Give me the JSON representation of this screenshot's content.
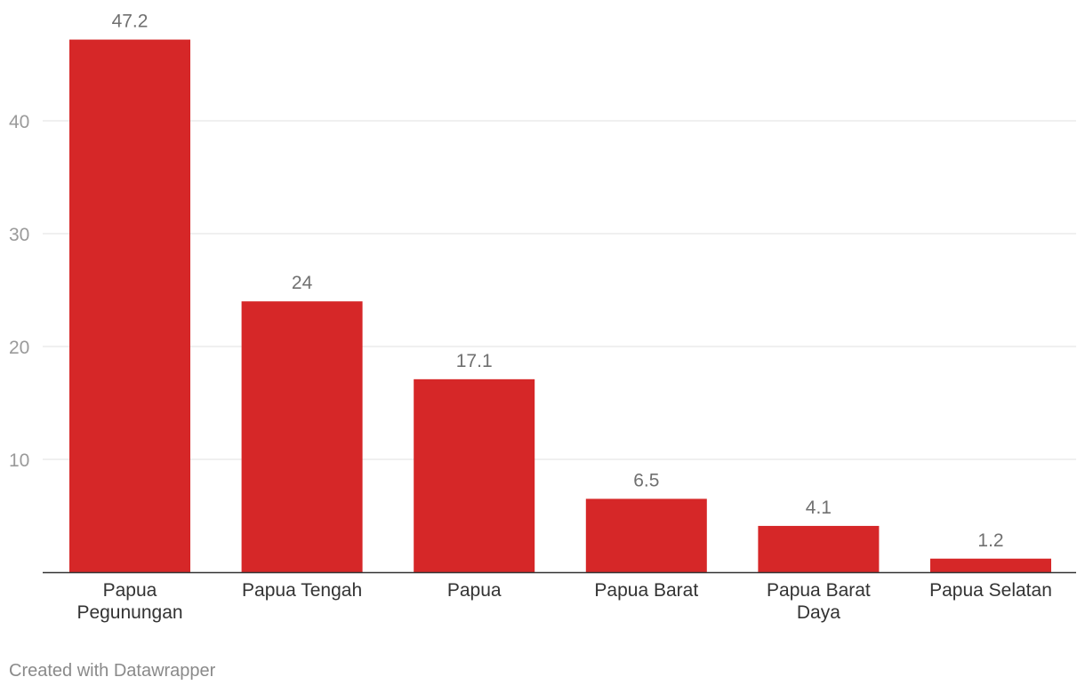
{
  "chart_data": {
    "type": "bar",
    "categories": [
      [
        "Papua",
        "Pegunungan"
      ],
      [
        "Papua Tengah"
      ],
      [
        "Papua"
      ],
      [
        "Papua Barat"
      ],
      [
        "Papua Barat",
        "Daya"
      ],
      [
        "Papua Selatan"
      ]
    ],
    "values": [
      47.2,
      24,
      17.1,
      6.5,
      4.1,
      1.2
    ],
    "value_labels": [
      "47.2",
      "24",
      "17.1",
      "6.5",
      "4.1",
      "1.2"
    ],
    "yticks": [
      10,
      20,
      30,
      40
    ],
    "ylim": [
      0,
      50
    ],
    "grid": true,
    "colors": {
      "bar": "#d62728",
      "grid": "#e2e2e2",
      "axis": "#333333"
    }
  },
  "footer": {
    "credit": "Created with Datawrapper"
  }
}
